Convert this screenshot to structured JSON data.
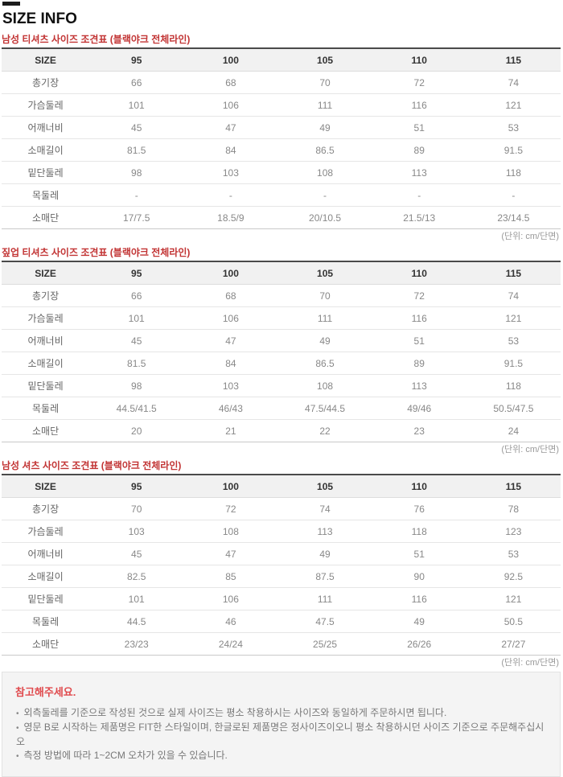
{
  "page": {
    "title": "SIZE INFO"
  },
  "units_note": "(단위: cm/단면)",
  "tables": [
    {
      "caption": "남성 티셔츠 사이즈 조견표 (블랙야크 전체라인)",
      "headers": [
        "SIZE",
        "95",
        "100",
        "105",
        "110",
        "115"
      ],
      "rows": [
        {
          "label": "총기장",
          "values": [
            "66",
            "68",
            "70",
            "72",
            "74"
          ]
        },
        {
          "label": "가슴둘레",
          "values": [
            "101",
            "106",
            "111",
            "116",
            "121"
          ]
        },
        {
          "label": "어깨너비",
          "values": [
            "45",
            "47",
            "49",
            "51",
            "53"
          ]
        },
        {
          "label": "소매길이",
          "values": [
            "81.5",
            "84",
            "86.5",
            "89",
            "91.5"
          ]
        },
        {
          "label": "밑단둘레",
          "values": [
            "98",
            "103",
            "108",
            "113",
            "118"
          ]
        },
        {
          "label": "목둘레",
          "values": [
            "-",
            "-",
            "-",
            "-",
            "-"
          ]
        },
        {
          "label": "소매단",
          "values": [
            "17/7.5",
            "18.5/9",
            "20/10.5",
            "21.5/13",
            "23/14.5"
          ]
        }
      ]
    },
    {
      "caption": "짚업 티셔츠 사이즈 조견표 (블랙야크 전체라인)",
      "headers": [
        "SIZE",
        "95",
        "100",
        "105",
        "110",
        "115"
      ],
      "rows": [
        {
          "label": "총기장",
          "values": [
            "66",
            "68",
            "70",
            "72",
            "74"
          ]
        },
        {
          "label": "가슴둘레",
          "values": [
            "101",
            "106",
            "111",
            "116",
            "121"
          ]
        },
        {
          "label": "어깨너비",
          "values": [
            "45",
            "47",
            "49",
            "51",
            "53"
          ]
        },
        {
          "label": "소매길이",
          "values": [
            "81.5",
            "84",
            "86.5",
            "89",
            "91.5"
          ]
        },
        {
          "label": "밑단둘레",
          "values": [
            "98",
            "103",
            "108",
            "113",
            "118"
          ]
        },
        {
          "label": "목둘레",
          "values": [
            "44.5/41.5",
            "46/43",
            "47.5/44.5",
            "49/46",
            "50.5/47.5"
          ]
        },
        {
          "label": "소매단",
          "values": [
            "20",
            "21",
            "22",
            "23",
            "24"
          ]
        }
      ]
    },
    {
      "caption": "남성 셔츠 사이즈 조견표 (블랙야크 전체라인)",
      "headers": [
        "SIZE",
        "95",
        "100",
        "105",
        "110",
        "115"
      ],
      "rows": [
        {
          "label": "총기장",
          "values": [
            "70",
            "72",
            "74",
            "76",
            "78"
          ]
        },
        {
          "label": "가슴둘레",
          "values": [
            "103",
            "108",
            "113",
            "118",
            "123"
          ]
        },
        {
          "label": "어깨너비",
          "values": [
            "45",
            "47",
            "49",
            "51",
            "53"
          ]
        },
        {
          "label": "소매길이",
          "values": [
            "82.5",
            "85",
            "87.5",
            "90",
            "92.5"
          ]
        },
        {
          "label": "밑단둘레",
          "values": [
            "101",
            "106",
            "111",
            "116",
            "121"
          ]
        },
        {
          "label": "목둘레",
          "values": [
            "44.5",
            "46",
            "47.5",
            "49",
            "50.5"
          ]
        },
        {
          "label": "소매단",
          "values": [
            "23/23",
            "24/24",
            "25/25",
            "26/26",
            "27/27"
          ]
        }
      ]
    }
  ],
  "notice": {
    "title": "참고해주세요.",
    "items": [
      "외측둘레를 기준으로 작성된 것으로 실제 사이즈는 평소 착용하시는 사이즈와 동일하게 주문하시면 됩니다.",
      "영문 B로 시작하는 제품명은 FIT한 스타일이며, 한글로된 제품명은 정사이즈이오니 평소 착용하시던 사이즈 기준으로 주문해주십시오",
      "측정 방법에 따라 1~2CM 오차가 있을 수 있습니다."
    ]
  },
  "colors": {
    "caption_red": "#c23434",
    "notice_red": "#e04a4d",
    "header_bg": "#f1f1f1",
    "caption_underline": "#4a4a4a",
    "notice_bg": "#f4f4f4"
  }
}
